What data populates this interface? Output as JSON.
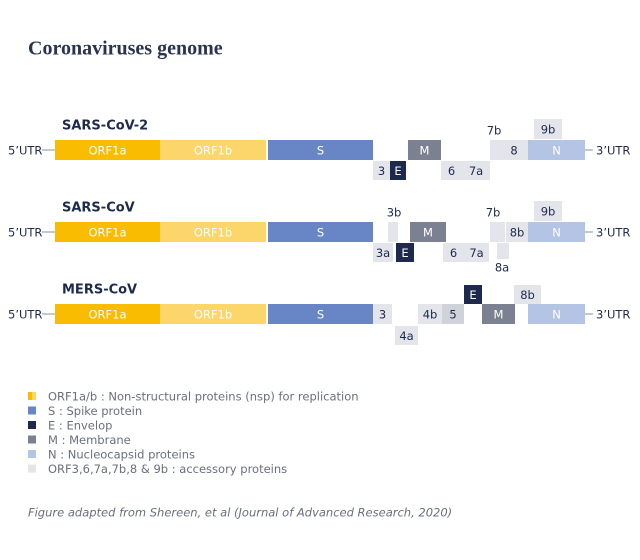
{
  "title": "Coronaviruses genome",
  "genomes": [
    {
      "name": "SARS-CoV-2",
      "utr5": "5’UTR",
      "utr3": "3’UTR",
      "genes": [
        "ORF1a",
        "ORF1b",
        "S",
        "3",
        "E",
        "M",
        "6",
        "7a",
        "7b",
        "8",
        "9b",
        "N"
      ]
    },
    {
      "name": "SARS-CoV",
      "utr5": "5’UTR",
      "utr3": "3’UTR",
      "genes": [
        "ORF1a",
        "ORF1b",
        "S",
        "3a",
        "3b",
        "E",
        "M",
        "6",
        "7a",
        "7b",
        "8a",
        "8b",
        "9b",
        "N"
      ]
    },
    {
      "name": "MERS-CoV",
      "utr5": "5’UTR",
      "utr3": "3’UTR",
      "genes": [
        "ORF1a",
        "ORF1b",
        "S",
        "3",
        "4a",
        "4b",
        "5",
        "E",
        "M",
        "8b",
        "N"
      ]
    }
  ],
  "legend": [
    "ORF1a/b : Non-structural proteins (nsp) for replication",
    "S : Spike protein",
    "E : Envelop",
    "M : Membrane",
    "N : Nucleocapsid proteins",
    "ORF3,6,7a,7b,8 & 9b : accessory proteins"
  ],
  "footnote": "Figure adapted from Shereen, et al (Journal of Advanced Research, 2020)"
}
